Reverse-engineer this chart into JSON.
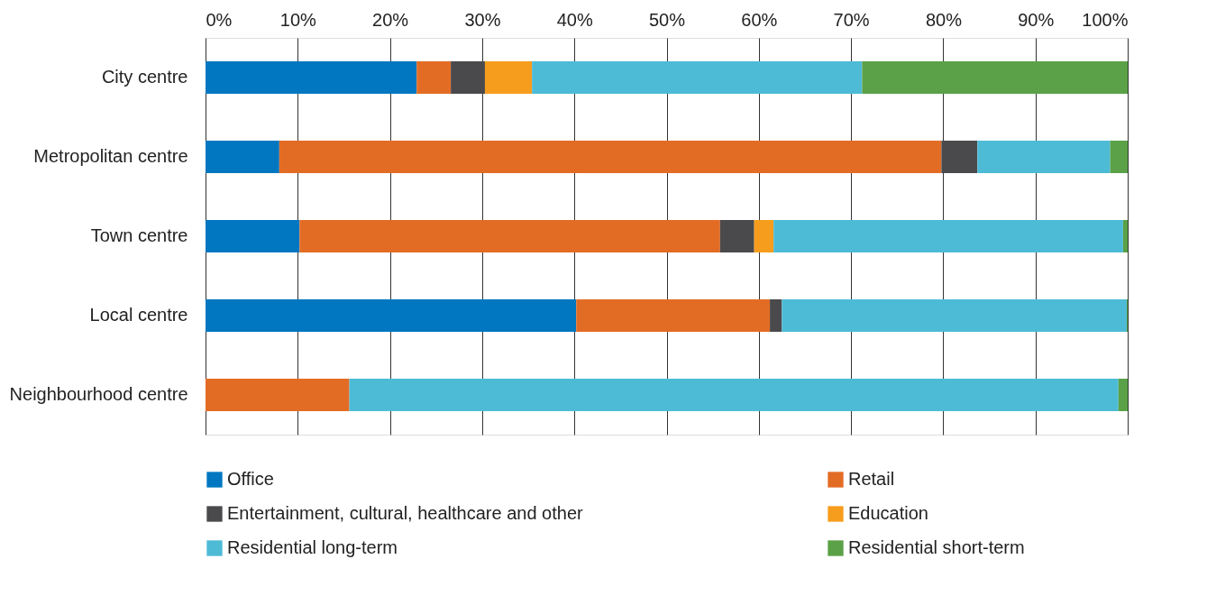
{
  "chart_data": {
    "type": "bar",
    "orientation": "horizontal",
    "stacked": true,
    "categories": [
      "City centre",
      "Metropolitan centre",
      "Town centre",
      "Local centre",
      "Neighbourhood centre"
    ],
    "series": [
      {
        "name": "Office",
        "color": "#0077c0",
        "values": [
          22.9,
          8.0,
          10.2,
          40.2,
          0
        ]
      },
      {
        "name": "Retail",
        "color": "#e36c25",
        "values": [
          3.7,
          71.8,
          45.6,
          21.0,
          15.6
        ]
      },
      {
        "name": "Entertainment, cultural, healthcare and other",
        "color": "#4a4a4c",
        "values": [
          3.7,
          3.9,
          3.7,
          1.3,
          0
        ]
      },
      {
        "name": "Education",
        "color": "#f79d1e",
        "values": [
          5.1,
          0,
          2.1,
          0,
          0
        ]
      },
      {
        "name": "Residential long-term",
        "color": "#4dbbd6",
        "values": [
          35.8,
          14.4,
          37.9,
          37.4,
          83.4
        ]
      },
      {
        "name": "Residential short-term",
        "color": "#5aa147",
        "values": [
          28.8,
          1.9,
          0.5,
          0.1,
          1.0
        ]
      }
    ],
    "xlim": [
      0,
      100
    ],
    "xticks": [
      {
        "value": 0,
        "label": "0%"
      },
      {
        "value": 10,
        "label": "10%"
      },
      {
        "value": 20,
        "label": "20%"
      },
      {
        "value": 30,
        "label": "30%"
      },
      {
        "value": 40,
        "label": "40%"
      },
      {
        "value": 50,
        "label": "50%"
      },
      {
        "value": 60,
        "label": "60%"
      },
      {
        "value": 70,
        "label": "70%"
      },
      {
        "value": 80,
        "label": "80%"
      },
      {
        "value": 90,
        "label": "90%"
      },
      {
        "value": 100,
        "label": "100%"
      }
    ],
    "grid": "x",
    "legend": "bottom"
  }
}
